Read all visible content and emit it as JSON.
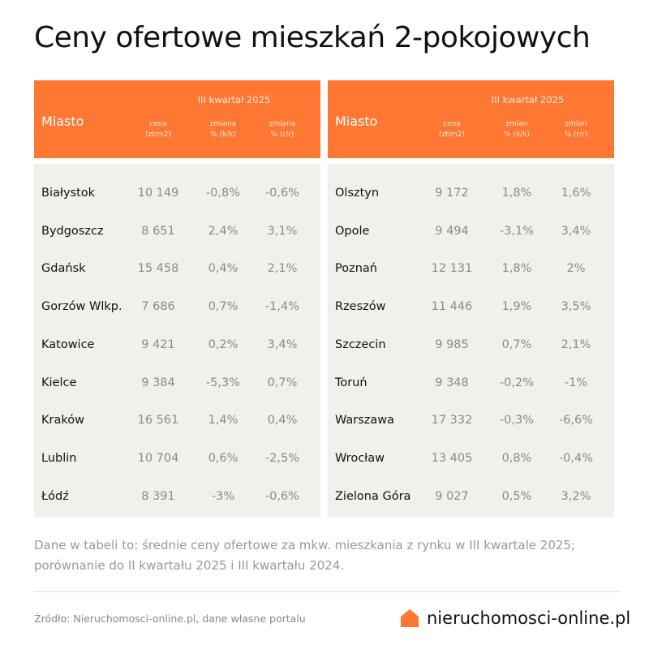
{
  "title": "Ceny ofertowe mieszkań 2-pokojowych",
  "accent_color": "#fe7733",
  "tables": [
    {
      "header": {
        "city": "Miasto",
        "quarter": "III kwartał 2025",
        "col1": [
          "cena",
          "(zł/m2)"
        ],
        "col2": [
          "zmiana",
          "% (k/k)"
        ],
        "col3": [
          "zmiana",
          "% (r/r)"
        ]
      },
      "rows": [
        {
          "city": "Białystok",
          "price": "10 149",
          "qq": "-0,8%",
          "yy": "-0,6%"
        },
        {
          "city": "Bydgoszcz",
          "price": "8 651",
          "qq": "2,4%",
          "yy": "3,1%"
        },
        {
          "city": "Gdańsk",
          "price": "15 458",
          "qq": "0,4%",
          "yy": "2,1%"
        },
        {
          "city": "Gorzów Wlkp.",
          "price": "7 686",
          "qq": "0,7%",
          "yy": "-1,4%"
        },
        {
          "city": "Katowice",
          "price": "9 421",
          "qq": "0,2%",
          "yy": "3,4%"
        },
        {
          "city": "Kielce",
          "price": "9 384",
          "qq": "-5,3%",
          "yy": "0,7%"
        },
        {
          "city": "Kraków",
          "price": "16 561",
          "qq": "1,4%",
          "yy": "0,4%"
        },
        {
          "city": "Lublin",
          "price": "10 704",
          "qq": "0,6%",
          "yy": "-2,5%"
        },
        {
          "city": "Łódź",
          "price": "8 391",
          "qq": "-3%",
          "yy": "-0,6%"
        }
      ]
    },
    {
      "header": {
        "city": "Miasto",
        "quarter": "III kwartał 2025",
        "col1": [
          "cena",
          "(zł/m2)"
        ],
        "col2": [
          "zmian",
          "% (k/k)"
        ],
        "col3": [
          "zmian",
          "% (r/r)"
        ]
      },
      "rows": [
        {
          "city": "Olsztyn",
          "price": "9 172",
          "qq": "1,8%",
          "yy": "1,6%"
        },
        {
          "city": "Opole",
          "price": "9 494",
          "qq": "-3,1%",
          "yy": "3,4%"
        },
        {
          "city": "Poznań",
          "price": "12 131",
          "qq": "1,8%",
          "yy": "2%"
        },
        {
          "city": "Rzeszów",
          "price": "11 446",
          "qq": "1,9%",
          "yy": "3,5%"
        },
        {
          "city": "Szczecin",
          "price": "9 985",
          "qq": "0,7%",
          "yy": "2,1%"
        },
        {
          "city": "Toruń",
          "price": "9 348",
          "qq": "-0,2%",
          "yy": "-1%"
        },
        {
          "city": "Warszawa",
          "price": "17 332",
          "qq": "-0,3%",
          "yy": "-6,6%"
        },
        {
          "city": "Wrocław",
          "price": "13 405",
          "qq": "0,8%",
          "yy": "-0,4%"
        },
        {
          "city": "Zielona Góra",
          "price": "9 027",
          "qq": "0,5%",
          "yy": "3,2%"
        }
      ]
    }
  ],
  "note": "Dane w tabeli to: średnie ceny ofertowe za mkw. mieszkania z rynku w III kwartale 2025; porównanie do II kwartału 2025 i III kwartału 2024.",
  "source": "Źródło: Nieruchomosci-online.pl, dane własne portalu",
  "logo": {
    "text": "nieruchomosci-online.pl",
    "icon": "house-icon"
  }
}
